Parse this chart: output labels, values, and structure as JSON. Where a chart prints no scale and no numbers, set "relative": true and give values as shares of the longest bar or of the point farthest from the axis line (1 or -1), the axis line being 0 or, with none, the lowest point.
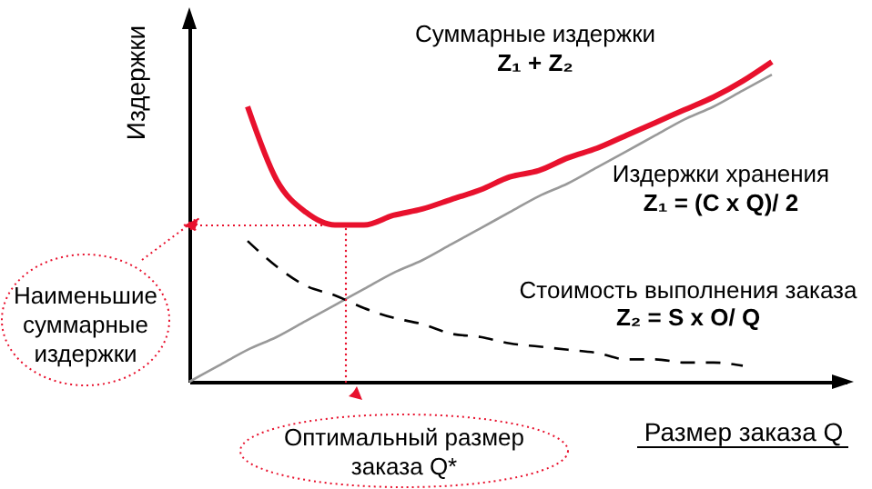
{
  "chart_data": {
    "type": "line",
    "relative": true,
    "xlabel": "Размер заказа Q",
    "ylabel": "Издержки",
    "categories": [
      null,
      null,
      null,
      null,
      null,
      null,
      null,
      null,
      null,
      null,
      null,
      null,
      null,
      null,
      null,
      null,
      null,
      null,
      null,
      null,
      null
    ],
    "series": [
      {
        "name": "Суммарные издержки",
        "color": "#e8112d",
        "line_style": "solid",
        "values": [
          null,
          null,
          0.86,
          0.63,
          0.53,
          0.49,
          0.49,
          0.52,
          0.54,
          0.57,
          0.6,
          0.64,
          0.66,
          0.7,
          0.73,
          0.77,
          0.81,
          0.85,
          0.89,
          0.94,
          1.0
        ]
      },
      {
        "name": "Издержки хранения",
        "color": "#999999",
        "line_style": "solid",
        "values": [
          0,
          0.05,
          0.1,
          0.14,
          0.19,
          0.24,
          0.29,
          0.34,
          0.38,
          0.43,
          0.48,
          0.53,
          0.58,
          0.62,
          0.67,
          0.72,
          0.77,
          0.82,
          0.86,
          0.91,
          0.96
        ]
      },
      {
        "name": "Стоимость выполнения заказа",
        "color": "#000000",
        "line_style": "dashed",
        "values": [
          null,
          null,
          0.44,
          0.36,
          0.3,
          0.27,
          0.23,
          0.2,
          0.18,
          0.15,
          0.14,
          0.12,
          0.11,
          0.1,
          0.09,
          0.07,
          0.07,
          0.06,
          0.06,
          0.05,
          null
        ]
      }
    ],
    "annotations": [
      "Z₁ + Z₂",
      "Z₁ = (C x Q)/ 2",
      "Z₂ = S x O/ Q",
      "Наименьшие суммарные издержки",
      "Оптимальный размер заказа Q*"
    ]
  }
}
